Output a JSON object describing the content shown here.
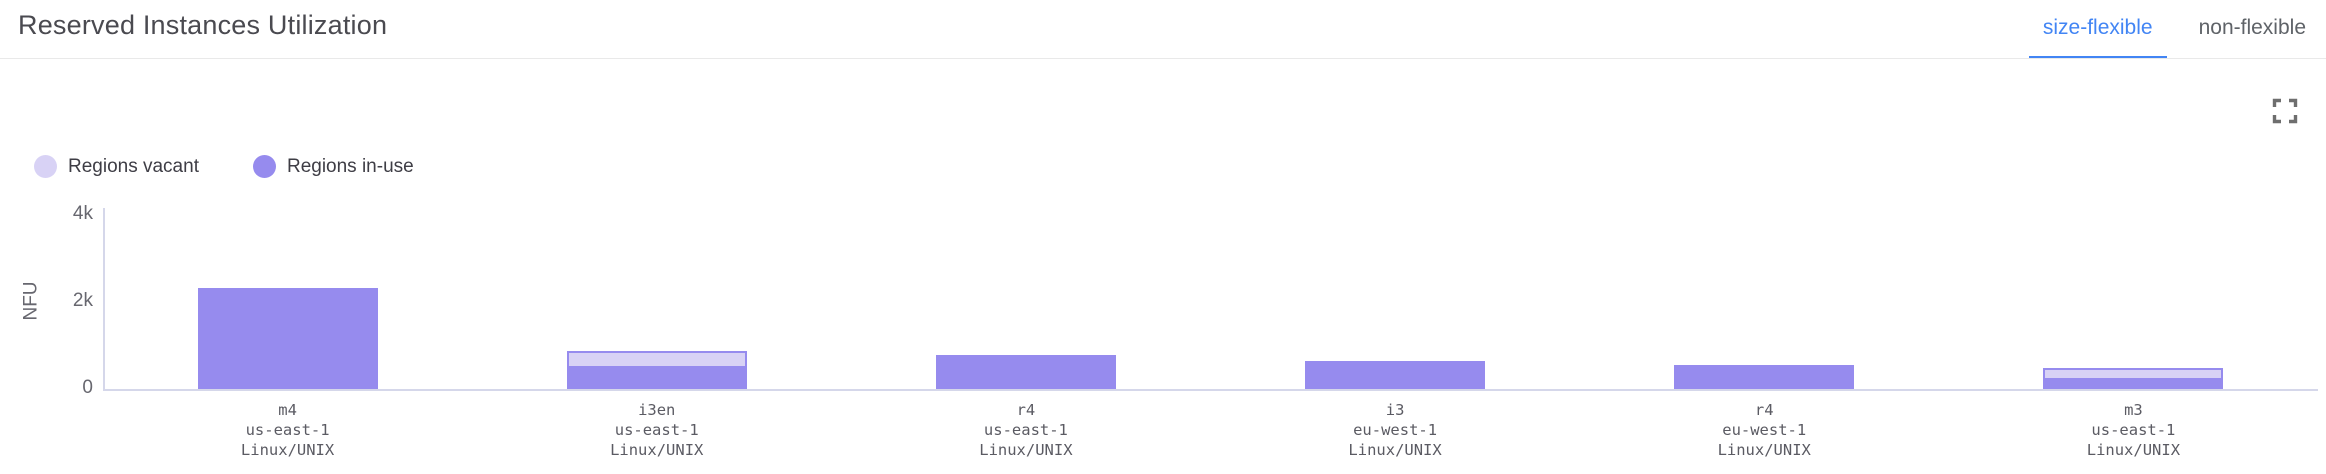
{
  "header": {
    "title": "Reserved Instances Utilization",
    "tabs": [
      {
        "label": "size-flexible",
        "active": true
      },
      {
        "label": "non-flexible",
        "active": false
      }
    ]
  },
  "toolbar": {
    "expand_icon": "fullscreen-expand-icon"
  },
  "legend": [
    {
      "label": "Regions vacant",
      "color": "#d8d2f5"
    },
    {
      "label": "Regions in-use",
      "color": "#968bee"
    }
  ],
  "colors": {
    "accent_tab_blue": "#4285f4",
    "bar_in_use": "#968bee",
    "bar_vacant_fill": "#d8d2f5",
    "bar_vacant_border": "#968bee",
    "axis_line": "#d5d7ea",
    "tick_text": "#67676f",
    "category_text": "#5b5b63"
  },
  "chart_data": {
    "type": "bar",
    "stacked": true,
    "title": "Reserved Instances Utilization",
    "xlabel": "",
    "ylabel": "NFU",
    "ylim": [
      0,
      4000
    ],
    "yticks": [
      {
        "label": "0",
        "value": 0
      },
      {
        "label": "2k",
        "value": 2000
      },
      {
        "label": "4k",
        "value": 4000
      }
    ],
    "grid": false,
    "legend_position": "top-left",
    "legend_order": [
      "Regions vacant",
      "Regions in-use"
    ],
    "categories": [
      [
        "m4",
        "us-east-1",
        "Linux/UNIX"
      ],
      [
        "i3en",
        "us-east-1",
        "Linux/UNIX"
      ],
      [
        "r4",
        "us-east-1",
        "Linux/UNIX"
      ],
      [
        "i3",
        "eu-west-1",
        "Linux/UNIX"
      ],
      [
        "r4",
        "eu-west-1",
        "Linux/UNIX"
      ],
      [
        "m3",
        "us-east-1",
        "Linux/UNIX"
      ]
    ],
    "series": [
      {
        "name": "Regions in-use",
        "color": "#968bee",
        "values": [
          2330,
          480,
          780,
          650,
          550,
          210
        ]
      },
      {
        "name": "Regions vacant",
        "color": "#d8d2f5",
        "values": [
          0,
          400,
          0,
          0,
          0,
          280
        ]
      }
    ]
  }
}
